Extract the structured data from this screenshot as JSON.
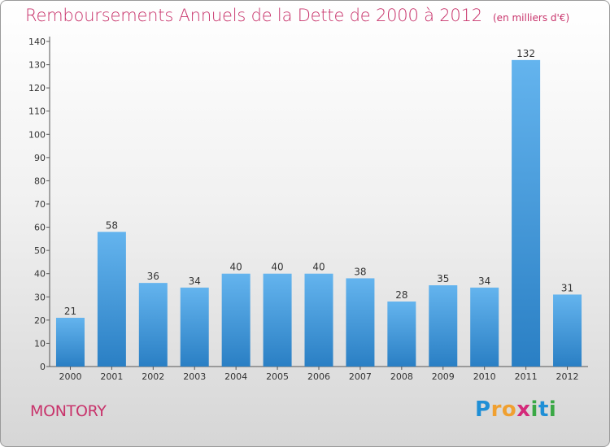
{
  "title": "Remboursements Annuels de la Dette de 2000 à 2012",
  "subtitle": "(en milliers d'€)",
  "commune": "MONTORY",
  "logo": {
    "letters": [
      "P",
      "r",
      "o",
      "x",
      "i",
      "t",
      "i"
    ],
    "colors": [
      "#1f8fd6",
      "#f0a030",
      "#f0a030",
      "#d42a7a",
      "#3aa845",
      "#1f8fd6",
      "#3aa845"
    ]
  },
  "colors": {
    "title": "#c8336b",
    "bar_light": "#64b4ee",
    "bar_dark": "#2a7fc4"
  },
  "chart_data": {
    "type": "bar",
    "title": "Remboursements Annuels de la Dette de 2000 à 2012",
    "subtitle": "(en milliers d'€)",
    "xlabel": "",
    "ylabel": "",
    "ylim": [
      0,
      140
    ],
    "yticks": [
      0,
      10,
      20,
      30,
      40,
      50,
      60,
      70,
      80,
      90,
      100,
      110,
      120,
      130,
      140
    ],
    "grid": false,
    "categories": [
      "2000",
      "2001",
      "2002",
      "2003",
      "2004",
      "2005",
      "2006",
      "2007",
      "2008",
      "2009",
      "2010",
      "2011",
      "2012"
    ],
    "values": [
      21,
      58,
      36,
      34,
      40,
      40,
      40,
      38,
      28,
      35,
      34,
      132,
      31
    ]
  }
}
